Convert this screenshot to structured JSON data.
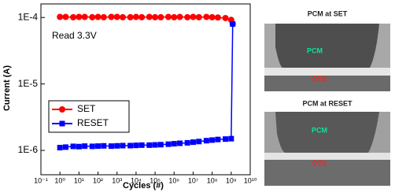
{
  "chart_data": {
    "type": "line",
    "xlabel": "Cycles (#)",
    "ylabel": "Current (A)",
    "annotation": "Read 3.3V",
    "xscale": "log",
    "yscale": "log",
    "xlim": [
      0.1,
      10000000000
    ],
    "ylim": [
      4.3e-07,
      0.00016
    ],
    "xticks": [
      {
        "value": 0.1,
        "label": "10⁻¹"
      },
      {
        "value": 1,
        "label": "10⁰"
      },
      {
        "value": 10,
        "label": "10¹"
      },
      {
        "value": 100,
        "label": "10²"
      },
      {
        "value": 1000,
        "label": "10³"
      },
      {
        "value": 10000,
        "label": "10⁴"
      },
      {
        "value": 100000,
        "label": "10⁵"
      },
      {
        "value": 1000000,
        "label": "10⁶"
      },
      {
        "value": 10000000,
        "label": "10⁷"
      },
      {
        "value": 100000000,
        "label": "10⁸"
      },
      {
        "value": 1000000000,
        "label": "10⁹"
      },
      {
        "value": 10000000000,
        "label": "10¹⁰"
      }
    ],
    "yticks": [
      {
        "value": 1e-06,
        "label": "1E-6"
      },
      {
        "value": 1e-05,
        "label": "1E-5"
      },
      {
        "value": 0.0001,
        "label": "1E-4"
      }
    ],
    "legend": "lower left",
    "x": [
      1,
      2,
      5,
      10,
      20,
      50,
      100,
      200,
      500,
      1000,
      2000,
      5000,
      10000,
      20000,
      50000,
      100000,
      200000,
      500000,
      1000000,
      2000000,
      5000000,
      10000000,
      20000000,
      50000000,
      100000000,
      200000000,
      500000000,
      1000000000,
      1200000000
    ],
    "series": [
      {
        "name": "SET",
        "color": "#ff0000",
        "marker": "circle",
        "values": [
          0.000102,
          0.000102,
          0.000101,
          0.000102,
          0.000102,
          0.000101,
          0.000102,
          0.000101,
          0.000102,
          0.000102,
          0.000101,
          0.000101,
          0.000102,
          0.000101,
          0.000102,
          0.000101,
          0.000101,
          0.000102,
          0.000101,
          0.000102,
          0.000101,
          0.000102,
          0.000101,
          0.000102,
          0.000101,
          0.0001,
          9.8e-05,
          9.2e-05,
          8e-05
        ]
      },
      {
        "name": "RESET",
        "color": "#0000ff",
        "marker": "square",
        "values": [
          1.1e-06,
          1.12e-06,
          1.15e-06,
          1.14e-06,
          1.16e-06,
          1.15e-06,
          1.16e-06,
          1.17e-06,
          1.16e-06,
          1.17e-06,
          1.18e-06,
          1.18e-06,
          1.19e-06,
          1.2e-06,
          1.2e-06,
          1.21e-06,
          1.22e-06,
          1.24e-06,
          1.26e-06,
          1.28e-06,
          1.3e-06,
          1.33e-06,
          1.36e-06,
          1.4e-06,
          1.43e-06,
          1.46e-06,
          1.48e-06,
          1.5e-06,
          8e-05
        ]
      }
    ]
  },
  "images": [
    {
      "title": "PCM at SET",
      "labels": [
        "PCM",
        "OTS"
      ]
    },
    {
      "title": "PCM at RESET",
      "labels": [
        "PCM",
        "OTS"
      ]
    }
  ]
}
